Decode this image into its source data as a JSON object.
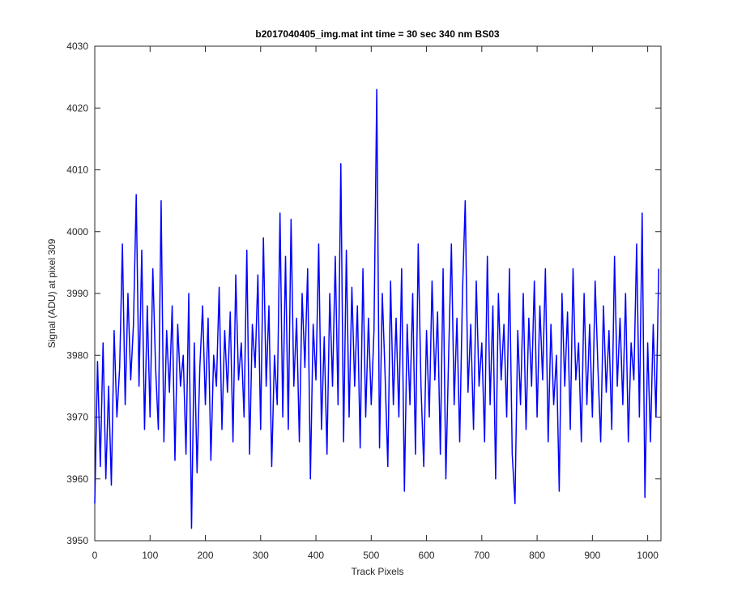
{
  "chart_data": {
    "type": "line",
    "title": "b2017040405_img.mat int time = 30 sec  340 nm BS03",
    "xlabel": "Track Pixels",
    "ylabel": "Signal (ADU) at pixel 309",
    "xlim": [
      0,
      1024
    ],
    "xticks": [
      0,
      100,
      200,
      300,
      400,
      500,
      600,
      700,
      800,
      900,
      1000
    ],
    "ylim": [
      3950,
      4030
    ],
    "yticks": [
      3950,
      3960,
      3970,
      3980,
      3990,
      4000,
      4010,
      4020,
      4030
    ],
    "grid": false,
    "x": [
      0,
      5,
      10,
      15,
      20,
      25,
      30,
      35,
      40,
      45,
      50,
      55,
      60,
      65,
      70,
      75,
      80,
      85,
      90,
      95,
      100,
      105,
      110,
      115,
      120,
      125,
      130,
      135,
      140,
      145,
      150,
      155,
      160,
      165,
      170,
      175,
      180,
      185,
      190,
      195,
      200,
      205,
      210,
      215,
      220,
      225,
      230,
      235,
      240,
      245,
      250,
      255,
      260,
      265,
      270,
      275,
      280,
      285,
      290,
      295,
      300,
      305,
      310,
      315,
      320,
      325,
      330,
      335,
      340,
      345,
      350,
      355,
      360,
      365,
      370,
      375,
      380,
      385,
      390,
      395,
      400,
      405,
      410,
      415,
      420,
      425,
      430,
      435,
      440,
      445,
      450,
      455,
      460,
      465,
      470,
      475,
      480,
      485,
      490,
      495,
      500,
      505,
      510,
      515,
      520,
      525,
      530,
      535,
      540,
      545,
      550,
      555,
      560,
      565,
      570,
      575,
      580,
      585,
      590,
      595,
      600,
      605,
      610,
      615,
      620,
      625,
      630,
      635,
      640,
      645,
      650,
      655,
      660,
      665,
      670,
      675,
      680,
      685,
      690,
      695,
      700,
      705,
      710,
      715,
      720,
      725,
      730,
      735,
      740,
      745,
      750,
      755,
      760,
      765,
      770,
      775,
      780,
      785,
      790,
      795,
      800,
      805,
      810,
      815,
      820,
      825,
      830,
      835,
      840,
      845,
      850,
      855,
      860,
      865,
      870,
      875,
      880,
      885,
      890,
      895,
      900,
      905,
      910,
      915,
      920,
      925,
      930,
      935,
      940,
      945,
      950,
      955,
      960,
      965,
      970,
      975,
      980,
      985,
      990,
      995,
      1000,
      1005,
      1010,
      1015,
      1020
    ],
    "series": [
      {
        "name": "signal",
        "color": "#0000ff",
        "values": [
          3956,
          3979,
          3962,
          3982,
          3960,
          3975,
          3959,
          3984,
          3970,
          3978,
          3998,
          3972,
          3990,
          3976,
          3985,
          4006,
          3975,
          3997,
          3968,
          3988,
          3970,
          3994,
          3978,
          3968,
          4005,
          3966,
          3984,
          3974,
          3988,
          3963,
          3985,
          3975,
          3980,
          3964,
          3990,
          3952,
          3982,
          3961,
          3978,
          3988,
          3972,
          3986,
          3963,
          3980,
          3975,
          3991,
          3968,
          3984,
          3974,
          3987,
          3966,
          3993,
          3976,
          3982,
          3970,
          3997,
          3964,
          3985,
          3978,
          3993,
          3968,
          3999,
          3975,
          3988,
          3962,
          3980,
          3972,
          4003,
          3970,
          3996,
          3968,
          4002,
          3975,
          3986,
          3966,
          3990,
          3978,
          3994,
          3960,
          3985,
          3976,
          3998,
          3968,
          3983,
          3964,
          3990,
          3975,
          3996,
          3972,
          4011,
          3966,
          3997,
          3970,
          3991,
          3975,
          3988,
          3965,
          3994,
          3970,
          3986,
          3972,
          3984,
          4023,
          3965,
          3990,
          3977,
          3962,
          3992,
          3972,
          3986,
          3970,
          3994,
          3958,
          3985,
          3972,
          3990,
          3964,
          3998,
          3975,
          3962,
          3984,
          3970,
          3992,
          3976,
          3987,
          3964,
          3994,
          3960,
          3980,
          3998,
          3972,
          3986,
          3966,
          3990,
          4005,
          3974,
          3985,
          3968,
          3992,
          3975,
          3982,
          3966,
          3996,
          3972,
          3988,
          3960,
          3990,
          3976,
          3985,
          3970,
          3994,
          3964,
          3956,
          3984,
          3972,
          3990,
          3968,
          3986,
          3975,
          3992,
          3970,
          3988,
          3976,
          3994,
          3966,
          3985,
          3972,
          3980,
          3958,
          3990,
          3975,
          3987,
          3968,
          3994,
          3976,
          3982,
          3966,
          3990,
          3972,
          3985,
          3970,
          3992,
          3978,
          3966,
          3988,
          3974,
          3984,
          3968,
          3996,
          3975,
          3986,
          3972,
          3990,
          3966,
          3982,
          3976,
          3998,
          3970,
          4003,
          3957,
          3982,
          3966,
          3985,
          3970,
          3994
        ]
      }
    ]
  }
}
